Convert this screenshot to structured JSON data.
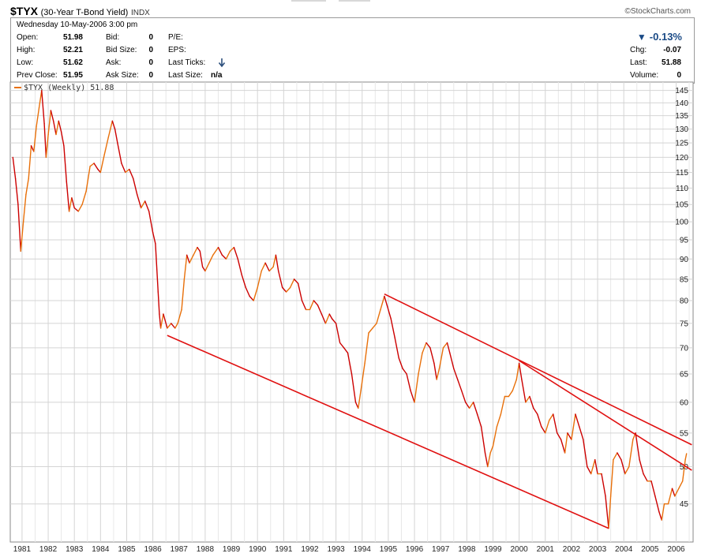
{
  "header": {
    "symbol": "$TYX",
    "name": "(30-Year T-Bond Yield)",
    "exchange": "INDX",
    "credit": "©StockCharts.com"
  },
  "quote": {
    "datetime": "Wednesday  10-May-2006  3:00 pm",
    "open_label": "Open:",
    "open": "51.98",
    "high_label": "High:",
    "high": "52.21",
    "low_label": "Low:",
    "low": "51.62",
    "prev_close_label": "Prev Close:",
    "prev_close": "51.95",
    "bid_label": "Bid:",
    "bid": "0",
    "bid_size_label": "Bid Size:",
    "bid_size": "0",
    "ask_label": "Ask:",
    "ask": "0",
    "ask_size_label": "Ask Size:",
    "ask_size": "0",
    "pe_label": "P/E:",
    "eps_label": "EPS:",
    "last_ticks_label": "Last Ticks:",
    "last_ticks_icon": "down-arrow-icon",
    "last_size_label": "Last Size:",
    "last_size": "n/a",
    "change_pct": "-0.13%",
    "change_direction_icon": "down-triangle-icon",
    "chg_label": "Chg:",
    "chg": "-0.07",
    "last_label": "Last:",
    "last": "51.88",
    "volume_label": "Volume:",
    "volume": "0"
  },
  "colors": {
    "price_line": "#e8700a",
    "price_line_down": "#cc0000",
    "trendline": "#e01010",
    "grid": "#d4d4d4",
    "change": "#1a4a86"
  },
  "chart_data": {
    "type": "line",
    "legend": "$TYX (Weekly) 51.88",
    "legend_placement": "top-left",
    "x_tick_labels": [
      "1981",
      "1982",
      "1983",
      "1984",
      "1985",
      "1986",
      "1987",
      "1988",
      "1989",
      "1990",
      "1991",
      "1992",
      "1993",
      "1994",
      "1995",
      "1996",
      "1997",
      "1998",
      "1999",
      "2000",
      "2001",
      "2002",
      "2003",
      "2004",
      "2005",
      "2006"
    ],
    "y_tick_labels": [
      45,
      50,
      55,
      60,
      65,
      70,
      75,
      80,
      85,
      90,
      95,
      100,
      105,
      110,
      115,
      120,
      125,
      130,
      135,
      140,
      145
    ],
    "y_scale": "log",
    "xlim": [
      1980.55,
      2006.65
    ],
    "ylim": [
      40.4,
      148.5
    ],
    "grid": true,
    "series": [
      {
        "name": "$TYX",
        "interval": "weekly",
        "last": 51.88,
        "points": [
          [
            1980.65,
            120
          ],
          [
            1980.75,
            113
          ],
          [
            1980.85,
            105
          ],
          [
            1980.95,
            92
          ],
          [
            1981.05,
            100
          ],
          [
            1981.15,
            108
          ],
          [
            1981.25,
            113
          ],
          [
            1981.35,
            124
          ],
          [
            1981.45,
            122
          ],
          [
            1981.55,
            131
          ],
          [
            1981.65,
            138
          ],
          [
            1981.75,
            145
          ],
          [
            1981.85,
            132
          ],
          [
            1981.92,
            120
          ],
          [
            1982.0,
            128
          ],
          [
            1982.1,
            137
          ],
          [
            1982.2,
            133
          ],
          [
            1982.3,
            128
          ],
          [
            1982.4,
            133
          ],
          [
            1982.5,
            129
          ],
          [
            1982.6,
            124
          ],
          [
            1982.7,
            112
          ],
          [
            1982.8,
            103
          ],
          [
            1982.9,
            107
          ],
          [
            1983.0,
            104
          ],
          [
            1983.15,
            103
          ],
          [
            1983.3,
            105
          ],
          [
            1983.45,
            109
          ],
          [
            1983.6,
            117
          ],
          [
            1983.75,
            118
          ],
          [
            1983.9,
            116
          ],
          [
            1984.0,
            115
          ],
          [
            1984.15,
            121
          ],
          [
            1984.3,
            127
          ],
          [
            1984.45,
            133
          ],
          [
            1984.55,
            130
          ],
          [
            1984.65,
            125
          ],
          [
            1984.8,
            118
          ],
          [
            1984.95,
            115
          ],
          [
            1985.1,
            116
          ],
          [
            1985.25,
            113
          ],
          [
            1985.4,
            108
          ],
          [
            1985.55,
            104
          ],
          [
            1985.7,
            106
          ],
          [
            1985.85,
            103
          ],
          [
            1986.0,
            97
          ],
          [
            1986.1,
            94
          ],
          [
            1986.2,
            82
          ],
          [
            1986.25,
            77
          ],
          [
            1986.3,
            74
          ],
          [
            1986.4,
            77
          ],
          [
            1986.55,
            74
          ],
          [
            1986.7,
            75
          ],
          [
            1986.85,
            74
          ],
          [
            1986.95,
            75
          ],
          [
            1987.1,
            78
          ],
          [
            1987.2,
            85
          ],
          [
            1987.3,
            91
          ],
          [
            1987.4,
            89
          ],
          [
            1987.55,
            91
          ],
          [
            1987.7,
            93
          ],
          [
            1987.8,
            92
          ],
          [
            1987.9,
            88
          ],
          [
            1988.0,
            87
          ],
          [
            1988.15,
            89
          ],
          [
            1988.3,
            91
          ],
          [
            1988.5,
            93
          ],
          [
            1988.65,
            91
          ],
          [
            1988.8,
            90
          ],
          [
            1988.95,
            92
          ],
          [
            1989.1,
            93
          ],
          [
            1989.25,
            90
          ],
          [
            1989.4,
            86
          ],
          [
            1989.55,
            83
          ],
          [
            1989.7,
            81
          ],
          [
            1989.85,
            80
          ],
          [
            1990.0,
            83
          ],
          [
            1990.15,
            87
          ],
          [
            1990.3,
            89
          ],
          [
            1990.45,
            87
          ],
          [
            1990.6,
            88
          ],
          [
            1990.7,
            91
          ],
          [
            1990.8,
            87
          ],
          [
            1990.95,
            83
          ],
          [
            1991.1,
            82
          ],
          [
            1991.25,
            83
          ],
          [
            1991.4,
            85
          ],
          [
            1991.55,
            84
          ],
          [
            1991.7,
            80
          ],
          [
            1991.85,
            78
          ],
          [
            1992.0,
            78
          ],
          [
            1992.15,
            80
          ],
          [
            1992.3,
            79
          ],
          [
            1992.45,
            77
          ],
          [
            1992.6,
            75
          ],
          [
            1992.75,
            77
          ],
          [
            1992.85,
            76
          ],
          [
            1993.0,
            75
          ],
          [
            1993.15,
            71
          ],
          [
            1993.3,
            70
          ],
          [
            1993.45,
            69
          ],
          [
            1993.6,
            65
          ],
          [
            1993.75,
            60
          ],
          [
            1993.85,
            59
          ],
          [
            1993.95,
            62
          ],
          [
            1994.1,
            67
          ],
          [
            1994.25,
            73
          ],
          [
            1994.4,
            74
          ],
          [
            1994.55,
            75
          ],
          [
            1994.7,
            78
          ],
          [
            1994.85,
            81
          ],
          [
            1994.95,
            79
          ],
          [
            1995.1,
            76
          ],
          [
            1995.25,
            72
          ],
          [
            1995.4,
            68
          ],
          [
            1995.55,
            66
          ],
          [
            1995.7,
            65
          ],
          [
            1995.85,
            62
          ],
          [
            1996.0,
            60
          ],
          [
            1996.15,
            65
          ],
          [
            1996.3,
            69
          ],
          [
            1996.45,
            71
          ],
          [
            1996.6,
            70
          ],
          [
            1996.75,
            67
          ],
          [
            1996.85,
            64
          ],
          [
            1996.95,
            66
          ],
          [
            1997.1,
            70
          ],
          [
            1997.25,
            71
          ],
          [
            1997.35,
            69
          ],
          [
            1997.5,
            66
          ],
          [
            1997.65,
            64
          ],
          [
            1997.8,
            62
          ],
          [
            1997.95,
            60
          ],
          [
            1998.1,
            59
          ],
          [
            1998.25,
            60
          ],
          [
            1998.4,
            58
          ],
          [
            1998.55,
            56
          ],
          [
            1998.7,
            52
          ],
          [
            1998.8,
            50
          ],
          [
            1998.9,
            52
          ],
          [
            1999.0,
            53
          ],
          [
            1999.15,
            56
          ],
          [
            1999.3,
            58
          ],
          [
            1999.45,
            61
          ],
          [
            1999.6,
            61
          ],
          [
            1999.75,
            62
          ],
          [
            1999.9,
            64
          ],
          [
            2000.0,
            67
          ],
          [
            2000.1,
            64
          ],
          [
            2000.25,
            60
          ],
          [
            2000.4,
            61
          ],
          [
            2000.55,
            59
          ],
          [
            2000.7,
            58
          ],
          [
            2000.85,
            56
          ],
          [
            2001.0,
            55
          ],
          [
            2001.15,
            57
          ],
          [
            2001.3,
            58
          ],
          [
            2001.45,
            55
          ],
          [
            2001.6,
            54
          ],
          [
            2001.75,
            52
          ],
          [
            2001.85,
            55
          ],
          [
            2002.0,
            54
          ],
          [
            2002.15,
            58
          ],
          [
            2002.3,
            56
          ],
          [
            2002.45,
            54
          ],
          [
            2002.6,
            50
          ],
          [
            2002.75,
            49
          ],
          [
            2002.9,
            51
          ],
          [
            2003.0,
            49
          ],
          [
            2003.15,
            49
          ],
          [
            2003.3,
            46
          ],
          [
            2003.42,
            42
          ],
          [
            2003.5,
            46
          ],
          [
            2003.6,
            51
          ],
          [
            2003.75,
            52
          ],
          [
            2003.9,
            51
          ],
          [
            2004.05,
            49
          ],
          [
            2004.2,
            50
          ],
          [
            2004.35,
            54
          ],
          [
            2004.45,
            55
          ],
          [
            2004.6,
            51
          ],
          [
            2004.75,
            49
          ],
          [
            2004.9,
            48
          ],
          [
            2005.05,
            48
          ],
          [
            2005.2,
            46
          ],
          [
            2005.35,
            44
          ],
          [
            2005.45,
            43
          ],
          [
            2005.55,
            45
          ],
          [
            2005.7,
            45
          ],
          [
            2005.85,
            47
          ],
          [
            2005.95,
            46
          ],
          [
            2006.1,
            47
          ],
          [
            2006.25,
            48
          ],
          [
            2006.35,
            51
          ],
          [
            2006.4,
            51.88
          ]
        ]
      }
    ],
    "trendlines": [
      {
        "from": [
          1986.55,
          72.5
        ],
        "to": [
          2003.42,
          42.0
        ]
      },
      {
        "from": [
          1994.85,
          81.5
        ],
        "to": [
          2006.6,
          53.2
        ]
      },
      {
        "from": [
          2000.0,
          67.5
        ],
        "to": [
          2006.6,
          49.5
        ]
      }
    ]
  }
}
